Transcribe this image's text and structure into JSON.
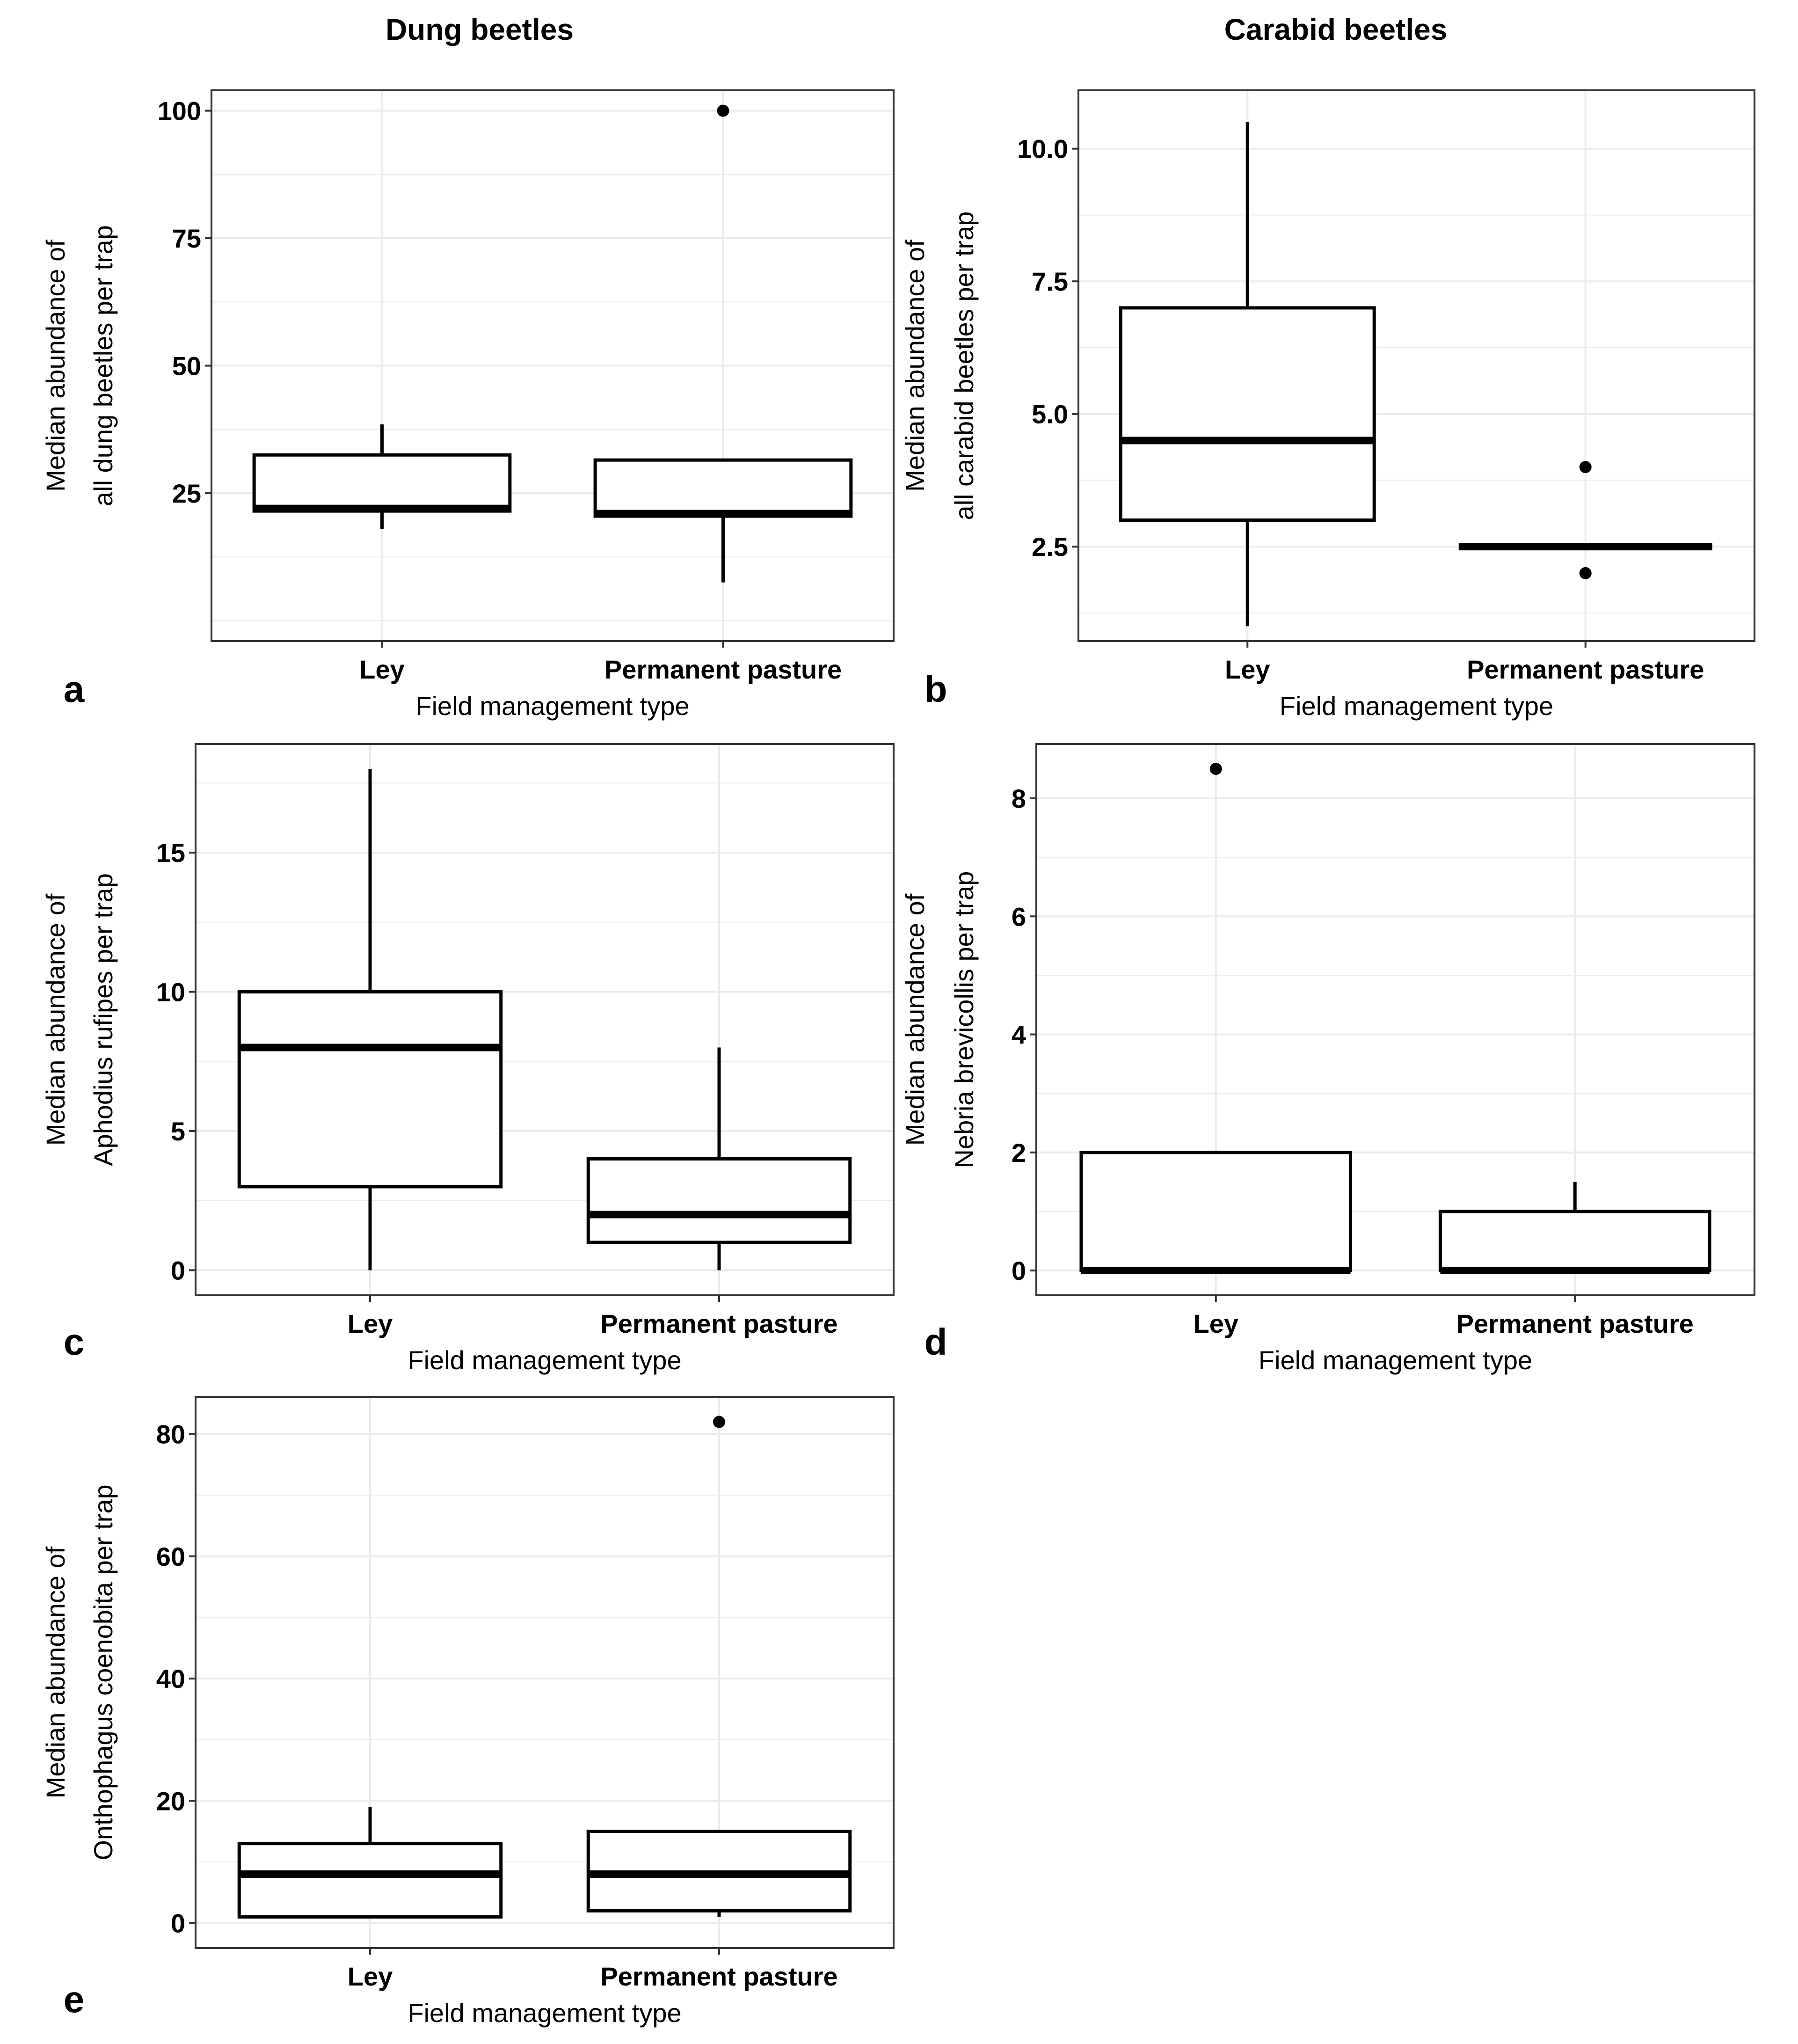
{
  "column_titles": {
    "left": "Dung beetles",
    "right": "Carabid beetles"
  },
  "chart_data": [
    {
      "id": "a",
      "type": "boxplot",
      "panel_label": "a",
      "xlabel": "Field management type",
      "ylabel_lines": [
        "Median abundance of",
        "all dung beetles per trap"
      ],
      "categories": [
        "Ley",
        "Permanent pasture"
      ],
      "ylim": [
        -4,
        104
      ],
      "y_ticks": [
        25,
        50,
        75,
        100
      ],
      "y_tick_labels": [
        "25",
        "50",
        "75",
        "100"
      ],
      "grid": true,
      "boxes": [
        {
          "category": "Ley",
          "whisker_low": 18,
          "q1": 21.5,
          "median": 22,
          "q3": 32.5,
          "whisker_high": 38.5,
          "outliers": []
        },
        {
          "category": "Permanent pasture",
          "whisker_low": 7.5,
          "q1": 20.5,
          "median": 21,
          "q3": 31.5,
          "whisker_high": 31.5,
          "outliers": [
            100
          ]
        }
      ]
    },
    {
      "id": "b",
      "type": "boxplot",
      "panel_label": "b",
      "xlabel": "Field management type",
      "ylabel_lines": [
        "Median abundance of",
        "all carabid beetles per trap"
      ],
      "categories": [
        "Ley",
        "Permanent pasture"
      ],
      "ylim": [
        0.72,
        11.1
      ],
      "y_ticks": [
        2.5,
        5.0,
        7.5,
        10.0
      ],
      "y_tick_labels": [
        "2.5",
        "5.0",
        "7.5",
        "10.0"
      ],
      "grid": true,
      "boxes": [
        {
          "category": "Ley",
          "whisker_low": 1,
          "q1": 3,
          "median": 4.5,
          "q3": 7,
          "whisker_high": 10.5,
          "outliers": []
        },
        {
          "category": "Permanent pasture",
          "whisker_low": 2.5,
          "q1": 2.5,
          "median": 2.5,
          "q3": 2.5,
          "whisker_high": 2.5,
          "outliers": [
            4,
            2
          ]
        }
      ]
    },
    {
      "id": "c",
      "type": "boxplot",
      "panel_label": "c",
      "xlabel": "Field management type",
      "ylabel_lines": [
        "Median abundance of",
        "Aphodius rufipes per trap"
      ],
      "categories": [
        "Ley",
        "Permanent pasture"
      ],
      "ylim": [
        -0.9,
        18.9
      ],
      "y_ticks": [
        0,
        5,
        10,
        15
      ],
      "y_tick_labels": [
        "0",
        "5",
        "10",
        "15"
      ],
      "grid": true,
      "boxes": [
        {
          "category": "Ley",
          "whisker_low": 0,
          "q1": 3,
          "median": 8,
          "q3": 10,
          "whisker_high": 18,
          "outliers": []
        },
        {
          "category": "Permanent pasture",
          "whisker_low": 0,
          "q1": 1,
          "median": 2,
          "q3": 4,
          "whisker_high": 8,
          "outliers": []
        }
      ]
    },
    {
      "id": "d",
      "type": "boxplot",
      "panel_label": "d",
      "xlabel": "Field management type",
      "ylabel_lines": [
        "Median abundance of",
        "Nebria brevicollis per trap"
      ],
      "categories": [
        "Ley",
        "Permanent pasture"
      ],
      "ylim": [
        -0.42,
        8.92
      ],
      "y_ticks": [
        0,
        2,
        4,
        6,
        8
      ],
      "y_tick_labels": [
        "0",
        "2",
        "4",
        "6",
        "8"
      ],
      "grid": true,
      "boxes": [
        {
          "category": "Ley",
          "whisker_low": 0,
          "q1": 0,
          "median": 0,
          "q3": 2,
          "whisker_high": 2,
          "outliers": [
            8.5
          ]
        },
        {
          "category": "Permanent pasture",
          "whisker_low": 0,
          "q1": 0,
          "median": 0,
          "q3": 1,
          "whisker_high": 1.5,
          "outliers": []
        }
      ]
    },
    {
      "id": "e",
      "type": "boxplot",
      "panel_label": "e",
      "xlabel": "Field management type",
      "ylabel_lines": [
        "Median abundance of",
        "Onthophagus coenobita per trap"
      ],
      "categories": [
        "Ley",
        "Permanent pasture"
      ],
      "ylim": [
        -4.1,
        86.1
      ],
      "y_ticks": [
        0,
        20,
        40,
        60,
        80
      ],
      "y_tick_labels": [
        "0",
        "20",
        "40",
        "60",
        "80"
      ],
      "grid": true,
      "boxes": [
        {
          "category": "Ley",
          "whisker_low": 1,
          "q1": 1,
          "median": 8,
          "q3": 13,
          "whisker_high": 19,
          "outliers": []
        },
        {
          "category": "Permanent pasture",
          "whisker_low": 1,
          "q1": 2,
          "median": 8,
          "q3": 15,
          "whisker_high": 15,
          "outliers": [
            82
          ]
        }
      ]
    }
  ]
}
